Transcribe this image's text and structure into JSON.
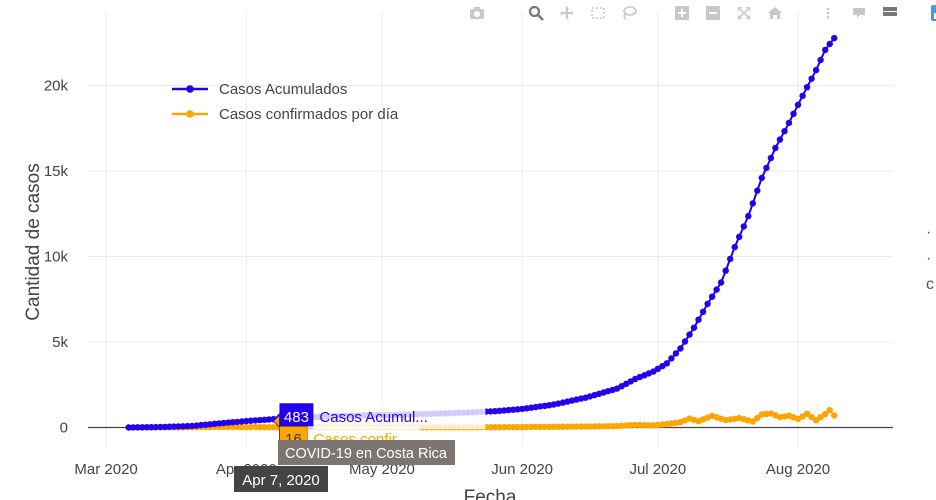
{
  "toolbar": {
    "icons": [
      "camera-icon",
      "zoom-icon",
      "pan-icon",
      "box-select-icon",
      "lasso-icon",
      "zoom-in-icon",
      "zoom-out-icon",
      "autoscale-icon",
      "reset-axes-icon",
      "spike-lines-icon",
      "hover-closest-icon",
      "hover-compare-icon",
      "plotly-logo-icon"
    ]
  },
  "right_edge_glyphs": [
    "·",
    "·",
    "c"
  ],
  "chart_data": {
    "type": "line",
    "title": "",
    "xlabel": "Fecha",
    "ylabel": "Cantidad de casos",
    "x_ticks": [
      "Mar 2020",
      "Apr 2020",
      "May 2020",
      "Jun 2020",
      "Jul 2020",
      "Aug 2020"
    ],
    "x_tick_dates": [
      "2020-03-01",
      "2020-04-01",
      "2020-05-01",
      "2020-06-01",
      "2020-07-01",
      "2020-08-01"
    ],
    "y_ticks": [
      0,
      5000,
      10000,
      15000,
      20000
    ],
    "y_tick_labels": [
      "0",
      "5k",
      "10k",
      "15k",
      "20k"
    ],
    "xlim": [
      "2020-02-26",
      "2020-08-22"
    ],
    "ylim": [
      -1200,
      24300
    ],
    "grid": true,
    "legend_position": "top-left",
    "colors": {
      "cumulative": "#2200ee",
      "daily": "#ffa500",
      "zeroline": "#444444",
      "grid": "#ebebeb"
    },
    "series": [
      {
        "name": "Casos Acumulados",
        "color": "#2200ee",
        "points": [
          [
            "2020-03-06",
            1
          ],
          [
            "2020-03-13",
            26
          ],
          [
            "2020-03-20",
            87
          ],
          [
            "2020-03-27",
            263
          ],
          [
            "2020-04-03",
            416
          ],
          [
            "2020-04-07",
            483
          ],
          [
            "2020-04-14",
            595
          ],
          [
            "2020-04-21",
            669
          ],
          [
            "2020-04-28",
            719
          ],
          [
            "2020-05-05",
            739
          ],
          [
            "2020-05-12",
            801
          ],
          [
            "2020-05-19",
            866
          ],
          [
            "2020-05-26",
            951
          ],
          [
            "2020-06-01",
            1084
          ],
          [
            "2020-06-08",
            1342
          ],
          [
            "2020-06-15",
            1744
          ],
          [
            "2020-06-22",
            2277
          ],
          [
            "2020-06-26",
            2836
          ],
          [
            "2020-06-30",
            3269
          ],
          [
            "2020-07-03",
            3753
          ],
          [
            "2020-07-06",
            4621
          ],
          [
            "2020-07-09",
            5836
          ],
          [
            "2020-07-12",
            7231
          ],
          [
            "2020-07-15",
            8482
          ],
          [
            "2020-07-18",
            10551
          ],
          [
            "2020-07-21",
            12361
          ],
          [
            "2020-07-24",
            14600
          ],
          [
            "2020-07-27",
            16344
          ],
          [
            "2020-07-30",
            17820
          ],
          [
            "2020-08-02",
            19400
          ],
          [
            "2020-08-05",
            20900
          ],
          [
            "2020-08-07",
            22081
          ],
          [
            "2020-08-09",
            22772
          ]
        ]
      },
      {
        "name": "Casos confirmados por día",
        "color": "#ffa500",
        "points": [
          [
            "2020-03-06",
            1
          ],
          [
            "2020-03-13",
            9
          ],
          [
            "2020-03-20",
            15
          ],
          [
            "2020-03-27",
            32
          ],
          [
            "2020-04-03",
            20
          ],
          [
            "2020-04-07",
            16
          ],
          [
            "2020-04-14",
            12
          ],
          [
            "2020-04-21",
            9
          ],
          [
            "2020-04-28",
            6
          ],
          [
            "2020-05-05",
            3
          ],
          [
            "2020-05-12",
            9
          ],
          [
            "2020-05-19",
            12
          ],
          [
            "2020-05-26",
            15
          ],
          [
            "2020-06-01",
            25
          ],
          [
            "2020-06-08",
            40
          ],
          [
            "2020-06-15",
            60
          ],
          [
            "2020-06-22",
            78
          ],
          [
            "2020-06-26",
            150
          ],
          [
            "2020-06-30",
            120
          ],
          [
            "2020-07-03",
            200
          ],
          [
            "2020-07-06",
            310
          ],
          [
            "2020-07-08",
            520
          ],
          [
            "2020-07-10",
            370
          ],
          [
            "2020-07-13",
            680
          ],
          [
            "2020-07-16",
            430
          ],
          [
            "2020-07-19",
            550
          ],
          [
            "2020-07-22",
            350
          ],
          [
            "2020-07-24",
            760
          ],
          [
            "2020-07-26",
            820
          ],
          [
            "2020-07-28",
            600
          ],
          [
            "2020-07-30",
            690
          ],
          [
            "2020-08-01",
            500
          ],
          [
            "2020-08-03",
            800
          ],
          [
            "2020-08-05",
            420
          ],
          [
            "2020-08-07",
            780
          ],
          [
            "2020-08-08",
            1010
          ],
          [
            "2020-08-09",
            700
          ]
        ]
      }
    ],
    "hover": {
      "date_label": "Apr 7, 2020",
      "title": "COVID-19 en Costa Rica",
      "cumulative_value": "483",
      "cumulative_name": "Casos Acumul...",
      "daily_value": "16",
      "daily_name": "Casos confir..."
    }
  }
}
